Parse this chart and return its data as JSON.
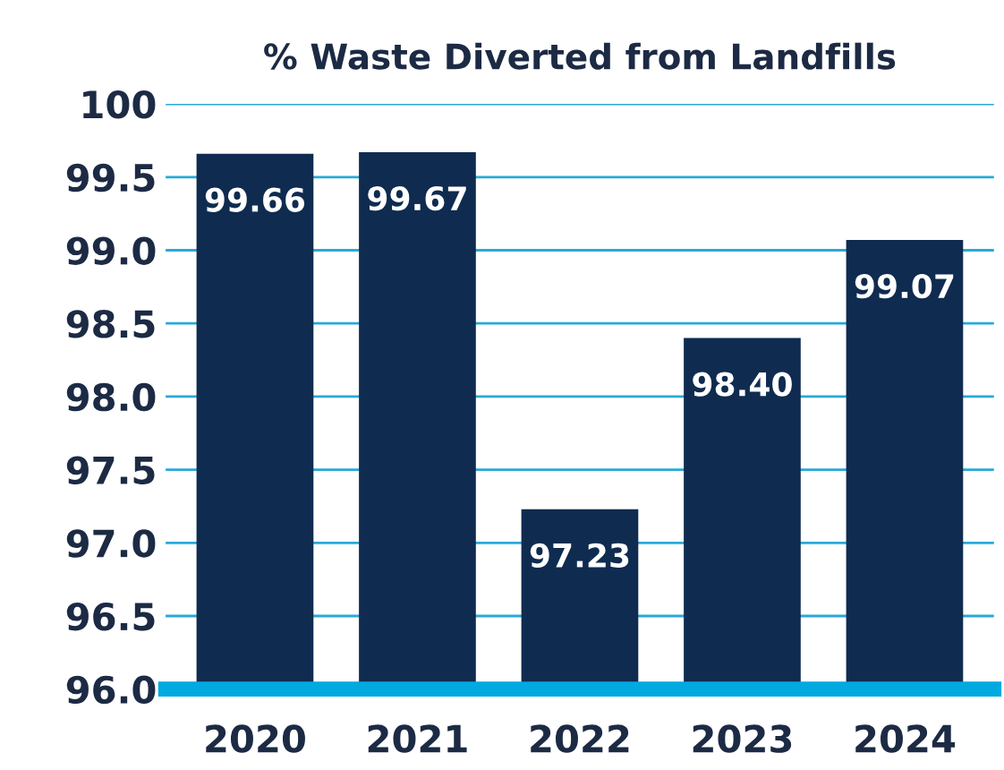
{
  "chart_data": {
    "type": "bar",
    "title": "% Waste Diverted from Landfills",
    "categories": [
      "2020",
      "2021",
      "2022",
      "2023",
      "2024"
    ],
    "values": [
      99.66,
      99.67,
      97.23,
      98.4,
      99.07
    ],
    "value_labels": [
      "99.66",
      "99.67",
      "97.23",
      "98.40",
      "99.07"
    ],
    "color": "#0f2b50",
    "ylim": [
      96,
      100
    ],
    "yticks": [
      {
        "value": 96,
        "label": "96.0"
      },
      {
        "value": 96.5,
        "label": "96.5"
      },
      {
        "value": 97,
        "label": "97.0"
      },
      {
        "value": 97.5,
        "label": "97.5"
      },
      {
        "value": 98,
        "label": "98.0"
      },
      {
        "value": 98.5,
        "label": "98.5"
      },
      {
        "value": 99,
        "label": "99.0"
      },
      {
        "value": 99.5,
        "label": "99.5"
      },
      {
        "value": 100,
        "label": "100"
      }
    ],
    "grid": "y"
  }
}
